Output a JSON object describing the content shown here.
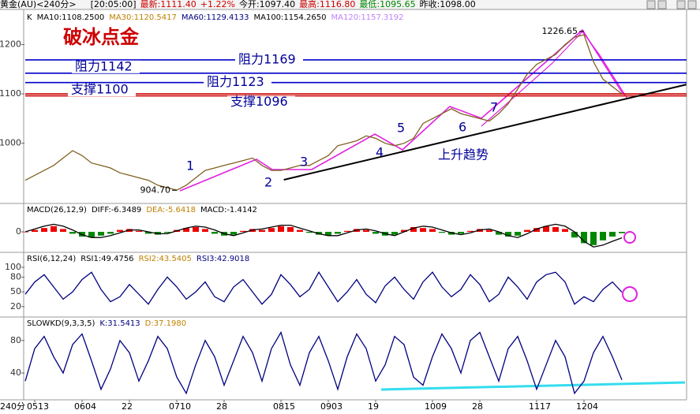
{
  "header": {
    "symbol": "黄金(AU)<240分>",
    "time": "[20:05:00]",
    "latest": "最新:1111.40",
    "change": "+1.22%",
    "open": "今开:1097.40",
    "high": "最高:1116.80",
    "low": "最低:1095.65",
    "prev_close": "昨收:1098.00"
  },
  "chart_data": [
    {
      "type": "line",
      "title": "破冰点金",
      "header": [
        {
          "text": "K",
          "color": "#000000"
        },
        {
          "text": "MA10:1108.2500",
          "color": "#000000"
        },
        {
          "text": "MA30:1120.5417",
          "color": "#c08000"
        },
        {
          "text": "MA60:1129.4133",
          "color": "#000080"
        },
        {
          "text": "MA100:1154.2650",
          "color": "#000000"
        },
        {
          "text": "MA120:1157.3192",
          "color": "#c080ff"
        }
      ],
      "x": [
        0,
        1,
        2,
        3,
        4,
        5,
        6,
        7,
        8,
        9,
        10,
        11,
        12,
        13,
        14,
        15,
        16,
        17,
        18,
        19,
        20,
        21,
        22,
        23,
        24,
        25,
        26,
        27,
        28,
        29,
        30,
        31,
        32,
        33,
        34,
        35,
        36,
        37,
        38,
        39,
        40,
        41,
        42,
        43,
        44,
        45,
        46,
        47,
        48,
        49,
        50,
        51,
        52,
        53,
        54,
        55,
        56,
        57,
        58,
        59,
        60,
        61,
        62,
        63
      ],
      "series": [
        {
          "color": "#806020",
          "values": [
            925,
            935,
            945,
            955,
            970,
            985,
            975,
            960,
            955,
            950,
            940,
            935,
            930,
            925,
            915,
            910,
            905,
            915,
            930,
            945,
            950,
            955,
            960,
            965,
            970,
            955,
            945,
            945,
            950,
            955,
            955,
            965,
            975,
            995,
            1000,
            1005,
            1015,
            1010,
            1000,
            995,
            1000,
            1010,
            1040,
            1050,
            1060,
            1070,
            1060,
            1055,
            1050,
            1045,
            1060,
            1080,
            1110,
            1140,
            1160,
            1170,
            1180,
            1200,
            1215,
            1220,
            1165,
            1130,
            1115,
            1100
          ]
        }
      ],
      "xlim": [
        0,
        70
      ],
      "ylim": [
        878,
        1268
      ],
      "yticks": [
        1000,
        1100,
        1200
      ],
      "levels": [
        {
          "text": "阻力1169",
          "value": 1169,
          "color": "#0000cc"
        },
        {
          "text": "阻力1142",
          "value": 1142,
          "color": "#0000cc"
        },
        {
          "text": "阻力1123",
          "value": 1123,
          "color": "#0000cc"
        },
        {
          "text": "支撑1100",
          "value": 1100,
          "color": "#cc0000"
        },
        {
          "text": "支撑1096",
          "value": 1096,
          "color": "#cc0000"
        }
      ],
      "trend": {
        "text": "上升趋势",
        "points": [
          [
            27.3,
            926
          ],
          [
            69.8,
            1119
          ]
        ]
      },
      "waves": [
        "1",
        "2",
        "3",
        "4",
        "5",
        "6",
        "7"
      ],
      "extremes": [
        {
          "text": "1226.65",
          "x": 59,
          "value": 1226.65
        },
        {
          "text": "904.70",
          "x": 16,
          "value": 904.7
        }
      ]
    },
    {
      "type": "macd",
      "header": [
        {
          "text": "MACD(26,12,9)",
          "color": "#000000"
        },
        {
          "text": "DIFF:-6.3489",
          "color": "#000000"
        },
        {
          "text": "DEA:-5.6418",
          "color": "#c08000"
        },
        {
          "text": "MACD:-1.4142",
          "color": "#000000"
        }
      ],
      "x": [
        0,
        1,
        2,
        3,
        4,
        5,
        6,
        7,
        8,
        9,
        10,
        11,
        12,
        13,
        14,
        15,
        16,
        17,
        18,
        19,
        20,
        21,
        22,
        23,
        24,
        25,
        26,
        27,
        28,
        29,
        30,
        31,
        32,
        33,
        34,
        35,
        36,
        37,
        38,
        39,
        40,
        41,
        42,
        43,
        44,
        45,
        46,
        47,
        48,
        49,
        50,
        51,
        52,
        53,
        54,
        55,
        56,
        57,
        58,
        59,
        60,
        61,
        62,
        63
      ],
      "series": [
        {
          "kind": "bar",
          "up_color": "#ee0000",
          "down_color": "#008800",
          "values": [
            0,
            2,
            4,
            6,
            3,
            -2,
            -5,
            -6,
            -4,
            -2,
            2,
            3,
            1,
            -2,
            -3,
            -1,
            2,
            4,
            5,
            3,
            -2,
            -4,
            -3,
            1,
            3,
            2,
            4,
            6,
            5,
            2,
            -1,
            -3,
            -4,
            -2,
            1,
            3,
            2,
            -2,
            -4,
            -3,
            2,
            5,
            4,
            3,
            -1,
            -3,
            -2,
            1,
            3,
            2,
            -3,
            -5,
            -4,
            2,
            4,
            6,
            5,
            3,
            -6,
            -12,
            -14,
            -9,
            -5,
            -1.4142
          ]
        },
        {
          "kind": "line",
          "color": "#000000",
          "values": [
            0,
            3,
            6,
            8,
            6,
            2,
            -3,
            -6,
            -6,
            -4,
            -1,
            2,
            2,
            0,
            -2,
            -2,
            1,
            4,
            6,
            5,
            2,
            -2,
            -4,
            -1,
            2,
            3,
            5,
            7,
            7,
            4,
            1,
            -2,
            -4,
            -4,
            -1,
            2,
            3,
            1,
            -2,
            -4,
            0,
            4,
            6,
            5,
            2,
            -1,
            -3,
            -1,
            2,
            3,
            0,
            -4,
            -6,
            -2,
            3,
            6,
            8,
            6,
            0,
            -10,
            -16,
            -14,
            -10,
            -6.3489
          ]
        }
      ],
      "xlim": [
        0,
        70
      ],
      "ylim": [
        -20,
        20
      ],
      "yticks": [
        0
      ]
    },
    {
      "type": "line",
      "header": [
        {
          "text": "RSI(6,12,24)",
          "color": "#000000"
        },
        {
          "text": "RSI1:49.4756",
          "color": "#000000"
        },
        {
          "text": "RSI2:43.5405",
          "color": "#c08000"
        },
        {
          "text": "RSI3:42.9018",
          "color": "#000080"
        }
      ],
      "x": [
        0,
        1,
        2,
        3,
        4,
        5,
        6,
        7,
        8,
        9,
        10,
        11,
        12,
        13,
        14,
        15,
        16,
        17,
        18,
        19,
        20,
        21,
        22,
        23,
        24,
        25,
        26,
        27,
        28,
        29,
        30,
        31,
        32,
        33,
        34,
        35,
        36,
        37,
        38,
        39,
        40,
        41,
        42,
        43,
        44,
        45,
        46,
        47,
        48,
        49,
        50,
        51,
        52,
        53,
        54,
        55,
        56,
        57,
        58,
        59,
        60,
        61,
        62,
        63
      ],
      "series": [
        {
          "color": "#000080",
          "values": [
            45,
            70,
            85,
            60,
            35,
            50,
            75,
            90,
            55,
            30,
            40,
            65,
            45,
            25,
            55,
            80,
            60,
            35,
            50,
            70,
            40,
            30,
            60,
            75,
            50,
            25,
            45,
            85,
            65,
            40,
            55,
            90,
            60,
            30,
            50,
            75,
            45,
            28,
            62,
            80,
            55,
            35,
            70,
            90,
            60,
            40,
            55,
            85,
            65,
            30,
            45,
            80,
            60,
            35,
            70,
            85,
            90,
            70,
            25,
            40,
            30,
            55,
            70,
            49.4756
          ]
        }
      ],
      "xlim": [
        0,
        70
      ],
      "ylim": [
        2,
        124
      ],
      "yticks": [
        20,
        50,
        80,
        100
      ]
    },
    {
      "type": "line",
      "header": [
        {
          "text": "SLOWKD(9,3,3,5)",
          "color": "#000000"
        },
        {
          "text": "K:31.5413",
          "color": "#000080"
        },
        {
          "text": "D:37.1980",
          "color": "#c08000"
        }
      ],
      "x": [
        0,
        1,
        2,
        3,
        4,
        5,
        6,
        7,
        8,
        9,
        10,
        11,
        12,
        13,
        14,
        15,
        16,
        17,
        18,
        19,
        20,
        21,
        22,
        23,
        24,
        25,
        26,
        27,
        28,
        29,
        30,
        31,
        32,
        33,
        34,
        35,
        36,
        37,
        38,
        39,
        40,
        41,
        42,
        43,
        44,
        45,
        46,
        47,
        48,
        49,
        50,
        51,
        52,
        53,
        54,
        55,
        56,
        57,
        58,
        59,
        60,
        61,
        62,
        63
      ],
      "series": [
        {
          "color": "#000080",
          "values": [
            30,
            70,
            85,
            60,
            40,
            75,
            88,
            55,
            20,
            45,
            80,
            65,
            30,
            55,
            85,
            70,
            35,
            15,
            50,
            80,
            60,
            25,
            55,
            85,
            65,
            30,
            70,
            90,
            50,
            25,
            65,
            85,
            55,
            20,
            60,
            88,
            70,
            30,
            50,
            85,
            75,
            35,
            25,
            60,
            88,
            70,
            40,
            80,
            90,
            60,
            30,
            70,
            85,
            55,
            20,
            50,
            80,
            60,
            15,
            30,
            65,
            85,
            60,
            31.5413
          ]
        }
      ],
      "xlim": [
        0,
        70
      ],
      "ylim": [
        9,
        105
      ],
      "yticks": [
        40,
        80
      ],
      "x_unit": "240分",
      "xticks": [
        {
          "value": 1,
          "label": "0513"
        },
        {
          "value": 6,
          "label": "0604"
        },
        {
          "value": 11,
          "label": "22"
        },
        {
          "value": 16,
          "label": "0710"
        },
        {
          "value": 21,
          "label": "28"
        },
        {
          "value": 27,
          "label": "0815"
        },
        {
          "value": 32,
          "label": "0903"
        },
        {
          "value": 37,
          "label": "19"
        },
        {
          "value": 43,
          "label": "1009"
        },
        {
          "value": 48,
          "label": "28"
        },
        {
          "value": 54,
          "label": "1117"
        },
        {
          "value": 59,
          "label": "1204"
        }
      ]
    }
  ]
}
